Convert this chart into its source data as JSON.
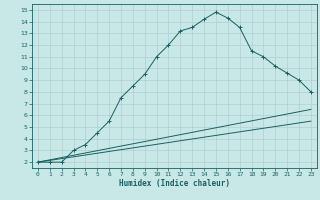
{
  "xlabel": "Humidex (Indice chaleur)",
  "bg_color": "#c8e8e8",
  "grid_color": "#b0d0d0",
  "line_color": "#1a5f5f",
  "xlim": [
    -0.5,
    23.5
  ],
  "ylim": [
    1.5,
    15.5
  ],
  "xticks": [
    0,
    1,
    2,
    3,
    4,
    5,
    6,
    7,
    8,
    9,
    10,
    11,
    12,
    13,
    14,
    15,
    16,
    17,
    18,
    19,
    20,
    21,
    22,
    23
  ],
  "yticks": [
    2,
    3,
    4,
    5,
    6,
    7,
    8,
    9,
    10,
    11,
    12,
    13,
    14,
    15
  ],
  "curve1_x": [
    0,
    1,
    2,
    3,
    4,
    5,
    6,
    7,
    8,
    9,
    10,
    11,
    12,
    13,
    14,
    15,
    16,
    17,
    18,
    19,
    20,
    21,
    22,
    23
  ],
  "curve1_y": [
    2.0,
    2.0,
    2.0,
    3.0,
    3.5,
    4.5,
    5.5,
    7.5,
    8.5,
    9.5,
    11.0,
    12.0,
    13.2,
    13.5,
    14.2,
    14.8,
    14.3,
    13.5,
    11.5,
    11.0,
    10.2,
    9.6,
    9.0,
    8.0
  ],
  "curve2_x": [
    0,
    23
  ],
  "curve2_y": [
    2.0,
    6.5
  ],
  "curve3_x": [
    0,
    23
  ],
  "curve3_y": [
    2.0,
    5.5
  ]
}
